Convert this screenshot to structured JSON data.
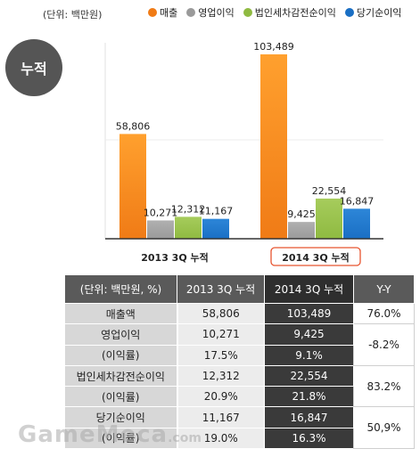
{
  "unit_note": "(단위: 백만원)",
  "badge": "누적",
  "legend": [
    {
      "label": "매출",
      "color": "#f07b16"
    },
    {
      "label": "영업이익",
      "color": "#9a9a9a"
    },
    {
      "label": "법인세차감전순이익",
      "color": "#8fba41"
    },
    {
      "label": "당기순이익",
      "color": "#1a6fc4"
    }
  ],
  "chart_data": {
    "type": "bar",
    "categories": [
      "2013 3Q 누적",
      "2014 3Q 누적"
    ],
    "series": [
      {
        "name": "매출",
        "color": "#f07b16",
        "values": [
          58806,
          103489
        ],
        "labels": [
          "58,806",
          "103,489"
        ]
      },
      {
        "name": "영업이익",
        "color": "#9a9a9a",
        "values": [
          10271,
          9425
        ],
        "labels": [
          "10,271",
          "9,425"
        ]
      },
      {
        "name": "법인세차감전순이익",
        "color": "#8fba41",
        "values": [
          12312,
          22554
        ],
        "labels": [
          "12,312",
          "22,554"
        ]
      },
      {
        "name": "당기순이익",
        "color": "#1a6fc4",
        "values": [
          11167,
          16847
        ],
        "labels": [
          "11,167",
          "16,847"
        ]
      }
    ],
    "ylim": [
      0,
      110000
    ],
    "highlighted_category": "2014 3Q 누적"
  },
  "table": {
    "headers": [
      "(단위: 백만원, %)",
      "2013  3Q 누적",
      "2014 3Q 누적",
      "Y-Y"
    ],
    "rows": [
      {
        "label": "매출액",
        "v2013": "58,806",
        "v2014": "103,489",
        "yy": "76.0%"
      },
      {
        "label": "영업이익",
        "v2013": "10,271",
        "v2014": "9,425",
        "yy": "-8.2%"
      },
      {
        "label": "(이익률)",
        "v2013": "17.5%",
        "v2014": "9.1%"
      },
      {
        "label": "법인세차감전순이익",
        "v2013": "12,312",
        "v2014": "22,554",
        "yy": "83.2%"
      },
      {
        "label": "(이익률)",
        "v2013": "20.9%",
        "v2014": "21.8%"
      },
      {
        "label": "당기순이익",
        "v2013": "11,167",
        "v2014": "16,847",
        "yy": "50,9%"
      },
      {
        "label": "(이익률)",
        "v2013": "19.0%",
        "v2014": "16.3%"
      }
    ]
  },
  "watermark": {
    "main": "GameMeca",
    "suffix": ".com"
  }
}
